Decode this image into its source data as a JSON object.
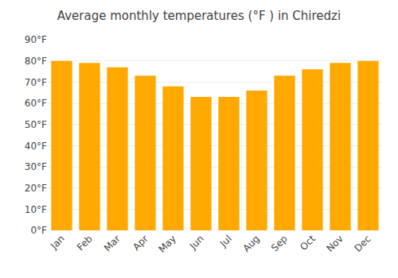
{
  "chart_data": {
    "type": "bar",
    "title": "Average monthly temperatures (°F ) in Chiredzi",
    "categories": [
      "Jan",
      "Feb",
      "Mar",
      "Apr",
      "May",
      "Jun",
      "Jul",
      "Aug",
      "Sep",
      "Oct",
      "Nov",
      "Dec"
    ],
    "values": [
      80,
      79,
      77,
      73,
      68,
      63,
      63,
      66,
      73,
      76,
      79,
      80
    ],
    "color": "#FFA800",
    "ylim": [
      0,
      90
    ],
    "yticks": [
      {
        "value": 0,
        "label": "0°F"
      },
      {
        "value": 10,
        "label": "10°F"
      },
      {
        "value": 20,
        "label": "20°F"
      },
      {
        "value": 30,
        "label": "30°F"
      },
      {
        "value": 40,
        "label": "40°F"
      },
      {
        "value": 50,
        "label": "50°F"
      },
      {
        "value": 60,
        "label": "60°F"
      },
      {
        "value": 70,
        "label": "70°F"
      },
      {
        "value": 80,
        "label": "80°F"
      },
      {
        "value": 90,
        "label": "90°F"
      }
    ],
    "grid": true
  }
}
